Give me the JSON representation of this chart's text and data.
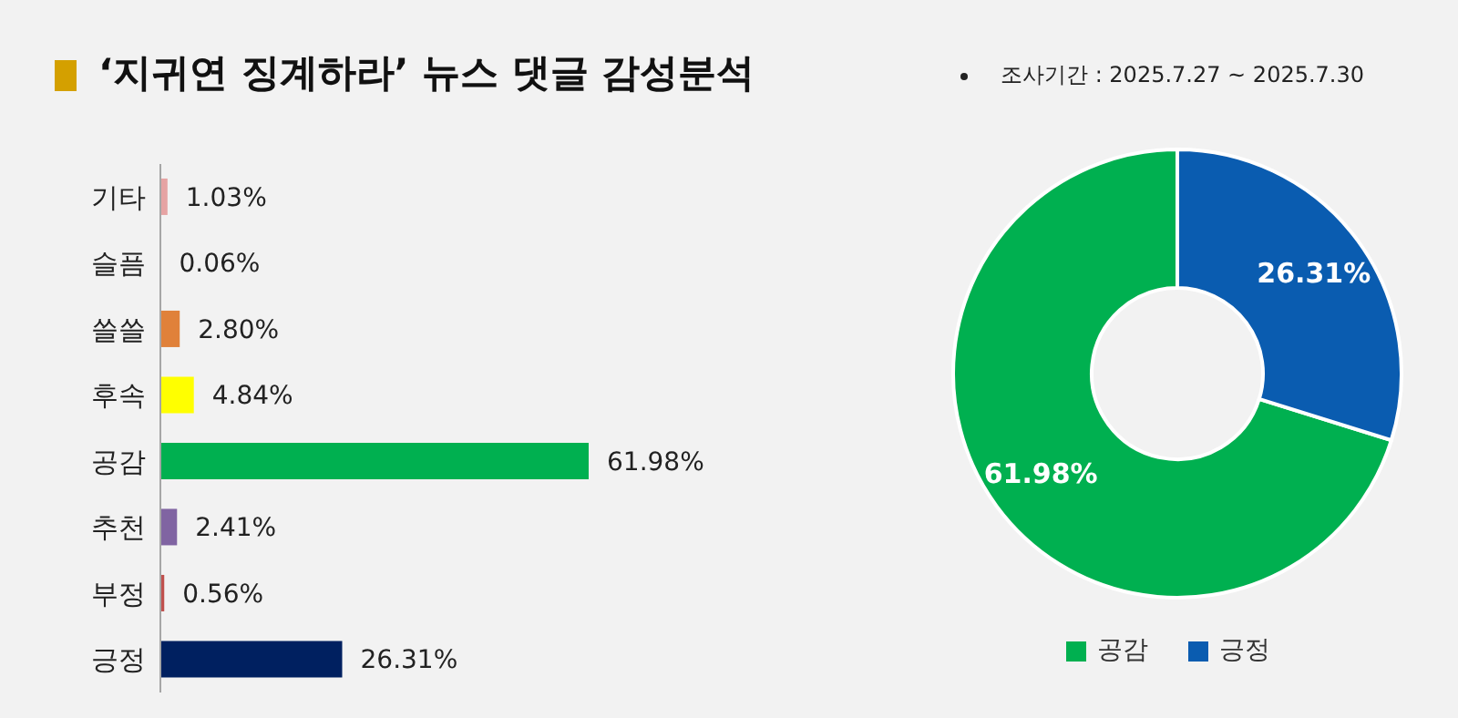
{
  "chart_data": [
    {
      "type": "bar",
      "orientation": "horizontal",
      "title": "‘지귀연 징계하라’ 뉴스 댓글 감성분석",
      "annotations": [
        "조사기간 : 2025.7.27 ~ 2025.7.30"
      ],
      "categories": [
        "기타",
        "슬픔",
        "쓸쓸",
        "후속",
        "공감",
        "추천",
        "부정",
        "긍정"
      ],
      "values": [
        1.03,
        0.06,
        2.8,
        4.84,
        61.98,
        2.41,
        0.56,
        26.31
      ],
      "colors": [
        "#e6a3a3",
        "#8eaadb",
        "#e0813a",
        "#ffff00",
        "#00b050",
        "#8064a2",
        "#c0504d",
        "#002060"
      ],
      "value_labels": [
        "1.03%",
        "0.06%",
        "2.80%",
        "4.84%",
        "61.98%",
        "2.41%",
        "0.56%",
        "26.31%"
      ]
    },
    {
      "type": "donut",
      "categories": [
        "공감",
        "긍정"
      ],
      "values": [
        61.98,
        26.31
      ],
      "colors": [
        "#00b050",
        "#0a5cb0"
      ],
      "value_labels": [
        "61.98%",
        "26.31%"
      ],
      "legend": "bottom"
    }
  ]
}
